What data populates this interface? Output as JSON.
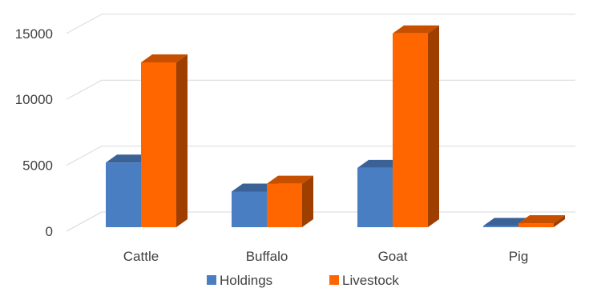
{
  "chart_data": {
    "type": "bar",
    "variant": "3d-clustered-column",
    "categories": [
      "Cattle",
      "Buffalo",
      "Goat",
      "Pig"
    ],
    "series": [
      {
        "name": "Holdings",
        "values": [
          4900,
          2700,
          4500,
          100
        ],
        "color": "#4A7EC2"
      },
      {
        "name": "Livestock",
        "values": [
          12500,
          3300,
          14700,
          300
        ],
        "color": "#FF6600"
      }
    ],
    "ylim": [
      0,
      15000
    ],
    "yticks": [
      0,
      5000,
      10000,
      15000
    ],
    "grid": true,
    "legend_position": "bottom",
    "title": "",
    "xlabel": "",
    "ylabel": ""
  }
}
